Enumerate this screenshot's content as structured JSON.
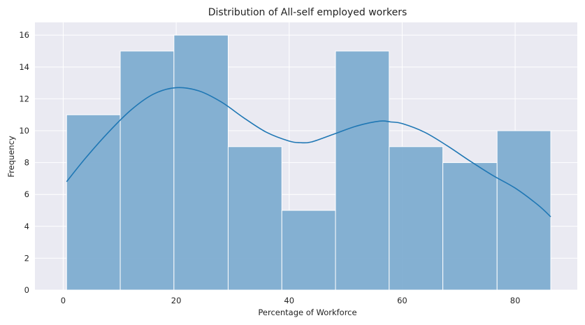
{
  "chart_data": {
    "type": "bar",
    "title": "Distribution of All-self employed workers",
    "xlabel": "Percentage of Workforce",
    "ylabel": "Frequency",
    "xlim": [
      -5,
      91
    ],
    "ylim": [
      0,
      16.8
    ],
    "xticks": [
      0,
      20,
      40,
      60,
      80
    ],
    "yticks": [
      0,
      2,
      4,
      6,
      8,
      10,
      12,
      14,
      16
    ],
    "grid": true,
    "bins": [
      {
        "start": 0.6,
        "end": 10.1,
        "count": 11
      },
      {
        "start": 10.1,
        "end": 19.6,
        "count": 15
      },
      {
        "start": 19.6,
        "end": 29.2,
        "count": 16
      },
      {
        "start": 29.2,
        "end": 38.7,
        "count": 9
      },
      {
        "start": 38.7,
        "end": 48.2,
        "count": 5
      },
      {
        "start": 48.2,
        "end": 57.7,
        "count": 15
      },
      {
        "start": 57.7,
        "end": 67.2,
        "count": 9
      },
      {
        "start": 67.2,
        "end": 76.8,
        "count": 8
      },
      {
        "start": 76.8,
        "end": 86.3,
        "count": 10
      }
    ],
    "kde": {
      "x": [
        0.6,
        4,
        8,
        12,
        16,
        20,
        24,
        28,
        32,
        36,
        40,
        42,
        44,
        48,
        52,
        56,
        58,
        60,
        64,
        68,
        72,
        76,
        80,
        84,
        86.3
      ],
      "y": [
        6.8,
        8.3,
        9.9,
        11.3,
        12.3,
        12.7,
        12.5,
        11.8,
        10.8,
        9.9,
        9.35,
        9.25,
        9.3,
        9.8,
        10.3,
        10.6,
        10.55,
        10.45,
        9.9,
        9.05,
        8.1,
        7.2,
        6.4,
        5.35,
        4.6
      ]
    },
    "colors": {
      "bar": "#7fadd1",
      "line": "#1f77b4",
      "plot_bg": "#eaeaf2",
      "grid": "#ffffff"
    }
  }
}
